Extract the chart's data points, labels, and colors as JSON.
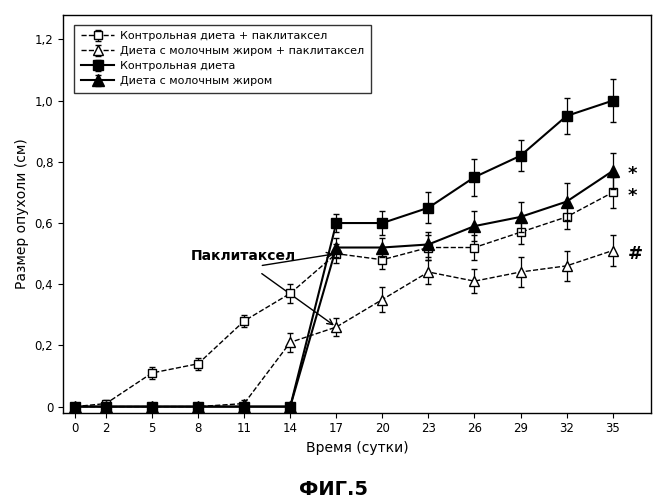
{
  "x": [
    0,
    2,
    5,
    8,
    11,
    14,
    17,
    20,
    23,
    26,
    29,
    32,
    35
  ],
  "series1_y": [
    0.0,
    0.0,
    0.0,
    0.0,
    0.0,
    0.0,
    0.6,
    0.6,
    0.65,
    0.75,
    0.82,
    0.95,
    1.0
  ],
  "series1_err": [
    0.0,
    0.0,
    0.0,
    0.0,
    0.0,
    0.0,
    0.03,
    0.04,
    0.05,
    0.06,
    0.05,
    0.06,
    0.07
  ],
  "series2_y": [
    0.0,
    0.01,
    0.11,
    0.14,
    0.28,
    0.37,
    0.5,
    0.48,
    0.52,
    0.52,
    0.57,
    0.62,
    0.7
  ],
  "series2_err": [
    0.0,
    0.01,
    0.02,
    0.02,
    0.02,
    0.03,
    0.03,
    0.03,
    0.04,
    0.04,
    0.04,
    0.04,
    0.05
  ],
  "series3_y": [
    0.0,
    0.0,
    0.0,
    0.0,
    0.0,
    0.0,
    0.52,
    0.52,
    0.53,
    0.59,
    0.62,
    0.67,
    0.77
  ],
  "series3_err": [
    0.0,
    0.0,
    0.0,
    0.0,
    0.0,
    0.0,
    0.03,
    0.03,
    0.04,
    0.05,
    0.05,
    0.06,
    0.06
  ],
  "series4_y": [
    0.0,
    0.0,
    0.0,
    0.0,
    0.01,
    0.21,
    0.26,
    0.35,
    0.44,
    0.41,
    0.44,
    0.46,
    0.51
  ],
  "series4_err": [
    0.0,
    0.0,
    0.0,
    0.0,
    0.01,
    0.03,
    0.03,
    0.04,
    0.04,
    0.04,
    0.05,
    0.05,
    0.05
  ],
  "xlabel": "Время (сутки)",
  "ylabel": "Размер опухоли (см)",
  "legend1": "Контрольная диета",
  "legend2": "Контрольная диета + паклитаксел",
  "legend3": "Диета с молочным жиром",
  "legend4": "Диета с молочным жиром + паклитаксел",
  "annotation": "Паклитаксел",
  "title_fig": "ФИГ.5",
  "yticks": [
    0.0,
    0.2,
    0.4,
    0.6,
    0.8,
    1.0,
    1.2
  ],
  "ytick_labels": [
    "0",
    "0,2",
    "0,4",
    "0,6",
    "0,8",
    "1,0",
    "1,2"
  ],
  "xticks": [
    0,
    2,
    5,
    8,
    11,
    14,
    17,
    20,
    23,
    26,
    29,
    32,
    35
  ],
  "ylim": [
    -0.02,
    1.28
  ],
  "xlim": [
    -0.8,
    37.5
  ]
}
